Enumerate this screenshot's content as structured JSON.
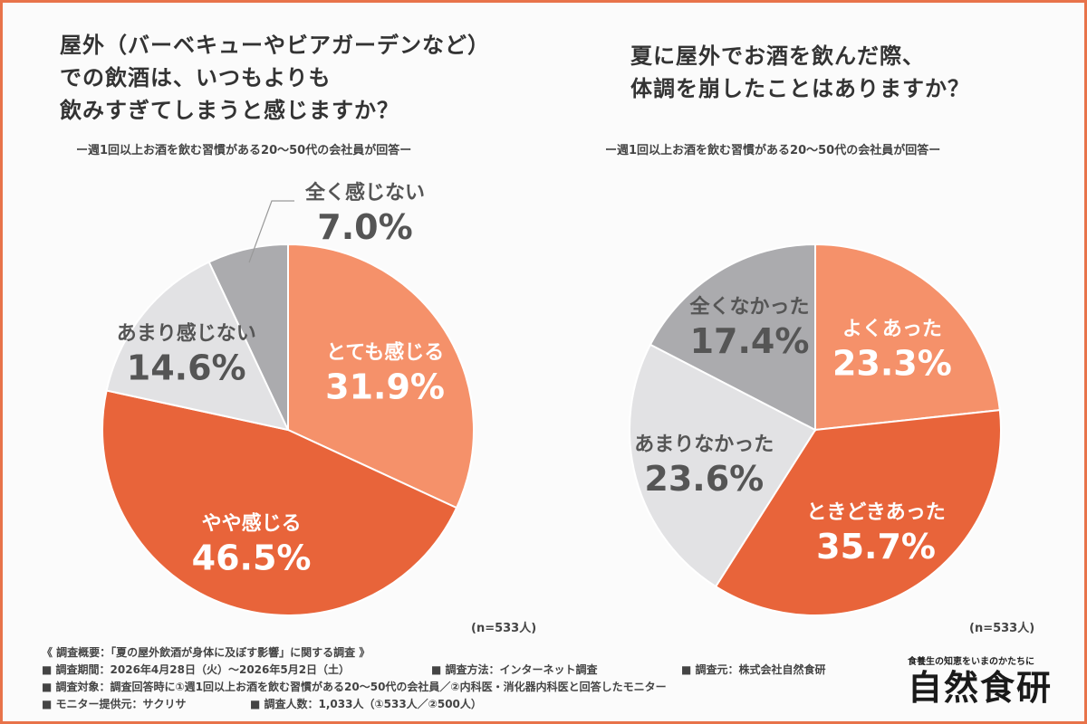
{
  "charts": [
    {
      "title_lines": [
        "屋外（バーベキューやビアガーデンなど）",
        "での飲酒は、いつもよりも",
        "飲みすぎてしまうと感じますか？"
      ],
      "subtitle": "ー週1回以上お酒を飲む習慣がある20〜50代の会社員が回答ー",
      "n_label": "(n=533人)"
    },
    {
      "title_lines": [
        "夏に屋外でお酒を飲んだ際、",
        "体調を崩したことはありますか？"
      ],
      "subtitle": "ー週1回以上お酒を飲む習慣がある20〜50代の会社員が回答ー",
      "n_label": "(n=533人)"
    }
  ],
  "chart_data": [
    {
      "type": "pie",
      "title": "屋外（バーベキューやビアガーデンなど）での飲酒は、いつもよりも飲みすぎてしまうと感じますか？",
      "slices": [
        {
          "label": "とても感じる",
          "value": 31.9,
          "display": "31.9%",
          "color": "#f5916a",
          "text_color": "#ffffff"
        },
        {
          "label": "やや感じる",
          "value": 46.5,
          "display": "46.5%",
          "color": "#e8643a",
          "text_color": "#ffffff"
        },
        {
          "label": "あまり感じない",
          "value": 14.6,
          "display": "14.6%",
          "color": "#e2e2e4",
          "text_color": "#555555"
        },
        {
          "label": "全く感じない",
          "value": 7.0,
          "display": "7.0%",
          "color": "#ababae",
          "text_color": "#555555"
        }
      ]
    },
    {
      "type": "pie",
      "title": "夏に屋外でお酒を飲んだ際、体調を崩したことはありますか？",
      "slices": [
        {
          "label": "よくあった",
          "value": 23.3,
          "display": "23.3%",
          "color": "#f5916a",
          "text_color": "#ffffff"
        },
        {
          "label": "ときどきあった",
          "value": 35.7,
          "display": "35.7%",
          "color": "#e8643a",
          "text_color": "#ffffff"
        },
        {
          "label": "あまりなかった",
          "value": 23.6,
          "display": "23.6%",
          "color": "#e2e2e4",
          "text_color": "#555555"
        },
        {
          "label": "全くなかった",
          "value": 17.4,
          "display": "17.4%",
          "color": "#ababae",
          "text_color": "#555555"
        }
      ]
    }
  ],
  "survey": {
    "overview": "《 調査概要：「夏の屋外飲酒が身体に及ぼす影響」に関する調査 》",
    "period": "■ 調査期間：2026年4月28日（火）〜2026年5月2日（土）",
    "method": "■ 調査方法：インターネット調査",
    "source": "■ 調査元：株式会社自然食研",
    "target": "■ 調査対象：調査回答時に①週1回以上お酒を飲む習慣がある20〜50代の会社員／②内科医・消化器内科医と回答したモニター",
    "monitor": "■ モニター提供元：サクリサ",
    "count": "■ 調査人数：1,033人（①533人／②500人）"
  },
  "logo": {
    "tagline": "食養生の知恵をいまのかたちに",
    "name": "自然食研"
  }
}
